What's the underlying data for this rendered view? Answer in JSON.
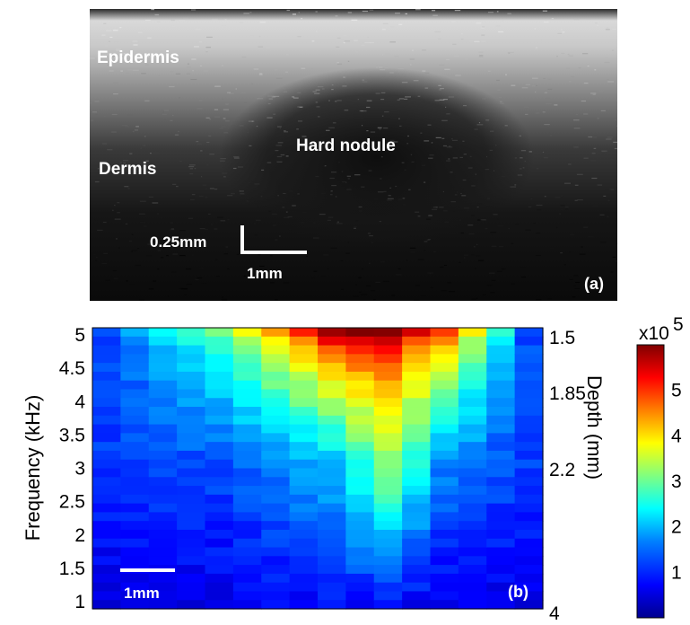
{
  "panel_a": {
    "labels": {
      "epidermis": "Epidermis",
      "dermis": "Dermis",
      "hard_nodule": "Hard nodule"
    },
    "scalebar_vertical": "0.25mm",
    "scalebar_horizontal": "1mm",
    "panel_tag": "(a)"
  },
  "panel_b": {
    "scalebar": "1mm",
    "panel_tag": "(b)"
  },
  "colors": {
    "jet": [
      "#00008f",
      "#0000ff",
      "#0080ff",
      "#00ffff",
      "#80ff80",
      "#ffff00",
      "#ff8000",
      "#ff0000",
      "#800000"
    ],
    "oct_background": "#0a0a0a"
  },
  "chart_data": {
    "type": "heatmap",
    "ylabel": "Frequency (kHz)",
    "ylim": [
      1,
      5
    ],
    "yticks": [
      "5",
      "4.5",
      "4",
      "3.5",
      "3",
      "2.5",
      "2",
      "1.5",
      "1"
    ],
    "y2label": "Depth (mm)",
    "y2ticks": [
      "1.5",
      "1.85",
      "2.2",
      "4"
    ],
    "colorbar": {
      "label": "x10",
      "exponent": "5",
      "range": [
        0,
        6
      ],
      "ticks": [
        "5",
        "4",
        "3",
        "2",
        "1"
      ]
    },
    "columns": 16,
    "rows": 32,
    "approx_column_profile_x1e5": [
      {
        "col": 1,
        "top": 1.2,
        "mid": 1.1,
        "bottom": 0.5
      },
      {
        "col": 5,
        "top": 3.0,
        "mid": 1.2,
        "bottom": 0.6
      },
      {
        "col": 9,
        "top": 6.0,
        "mid": 1.8,
        "bottom": 0.8
      },
      {
        "col": 11,
        "top": 6.0,
        "mid": 3.0,
        "bottom": 0.8
      },
      {
        "col": 13,
        "top": 5.0,
        "mid": 1.5,
        "bottom": 0.6
      },
      {
        "col": 16,
        "top": 1.2,
        "mid": 1.1,
        "bottom": 0.6
      }
    ]
  }
}
